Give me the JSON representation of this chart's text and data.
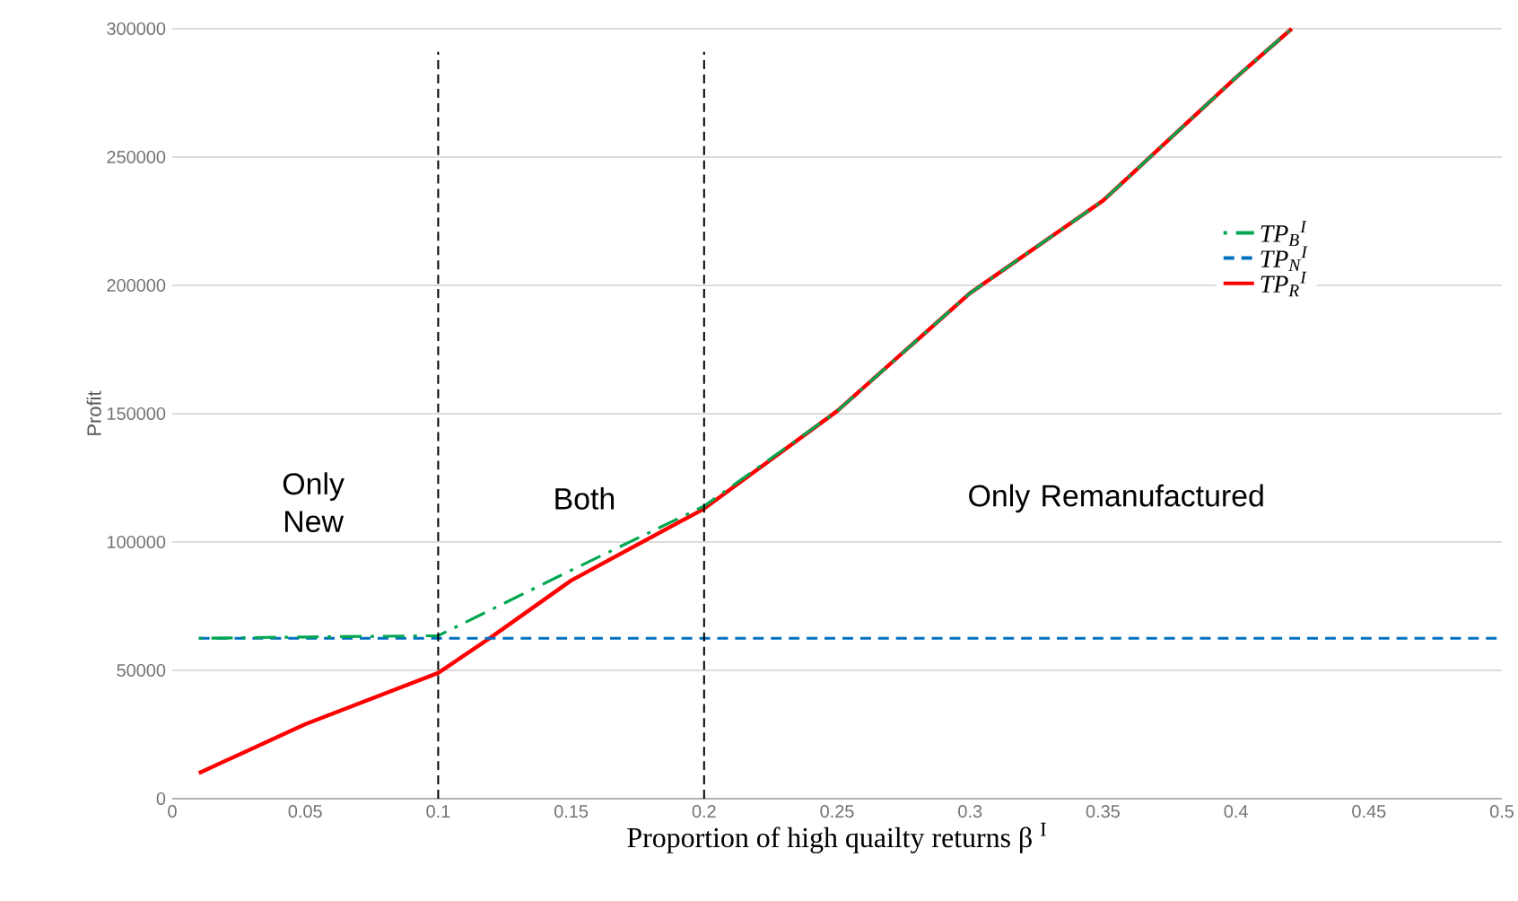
{
  "chart_data": {
    "type": "line",
    "xlabel": "Proportion of high quailty returns β $^{I}$",
    "ylabel": "Profit",
    "xlim": [
      0,
      0.5
    ],
    "xticks": [
      0,
      0.05,
      0.1,
      0.15,
      0.2,
      0.25,
      0.3,
      0.35,
      0.4,
      0.45,
      0.5
    ],
    "ylim": [
      0,
      300000
    ],
    "yticks": [
      0,
      50000,
      100000,
      150000,
      200000,
      250000,
      300000
    ],
    "grid": "y",
    "legend": "right",
    "marker": "none",
    "series": [
      {
        "name": "*TP*$_{B}$$^{I}$",
        "color": "#00a650",
        "line_style": "dashdot",
        "x": [
          0.01,
          0.05,
          0.1,
          0.15,
          0.2,
          0.25,
          0.3,
          0.35,
          0.4,
          0.421
        ],
        "values": [
          62500,
          63000,
          63500,
          89000,
          114000,
          151000,
          197000,
          233000,
          281000,
          300000
        ]
      },
      {
        "name": "*TP*$_{N}$$^{I}$",
        "color": "#0070c0",
        "line_style": "dashed",
        "x": [
          0.01,
          0.5
        ],
        "values": [
          62500,
          62500
        ]
      },
      {
        "name": "*TP*$_{R}$$^{I}$",
        "color": "#ff0000",
        "line_style": "solid",
        "x": [
          0.01,
          0.05,
          0.1,
          0.12,
          0.15,
          0.2,
          0.25,
          0.3,
          0.35,
          0.4,
          0.421
        ],
        "values": [
          10000,
          29000,
          49000,
          63000,
          85000,
          113000,
          151000,
          197000,
          233000,
          281000,
          300000
        ]
      }
    ],
    "ref_lines": [
      {
        "axis": "x",
        "value": 0.1,
        "color": "#000000",
        "line_style": "dashed"
      },
      {
        "axis": "x",
        "value": 0.2,
        "color": "#000000",
        "line_style": "dashed"
      }
    ],
    "annotations": [
      "Only New",
      "Both",
      "Only Remanufactured"
    ]
  }
}
